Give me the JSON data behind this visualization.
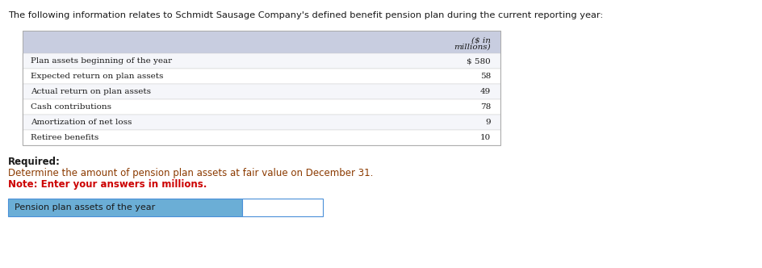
{
  "header_text": "The following information relates to Schmidt Sausage Company's defined benefit pension plan during the current reporting year:",
  "col_header_line1": "($ in",
  "col_header_line2": "millions)",
  "table_rows": [
    [
      "Plan assets beginning of the year",
      "$ 580"
    ],
    [
      "Expected return on plan assets",
      "58"
    ],
    [
      "Actual return on plan assets",
      "49"
    ],
    [
      "Cash contributions",
      "78"
    ],
    [
      "Amortization of net loss",
      "9"
    ],
    [
      "Retiree benefits",
      "10"
    ]
  ],
  "row_bg_odd": "#f5f6fa",
  "row_bg_even": "#ffffff",
  "table_header_bg": "#c8cde0",
  "required_label": "Required:",
  "required_body": "Determine the amount of pension plan assets at fair value on December 31.",
  "note_text": "Note: Enter your answers in millions.",
  "answer_row_label": "Pension plan assets of the year",
  "answer_row_bg": "#6baed6",
  "answer_box_bg": "#ffffff",
  "font_color": "#1a1a1a",
  "bg_color": "#ffffff",
  "header_color": "#1a1a1a",
  "required_body_color": "#8b3a00",
  "note_color": "#cc0000"
}
